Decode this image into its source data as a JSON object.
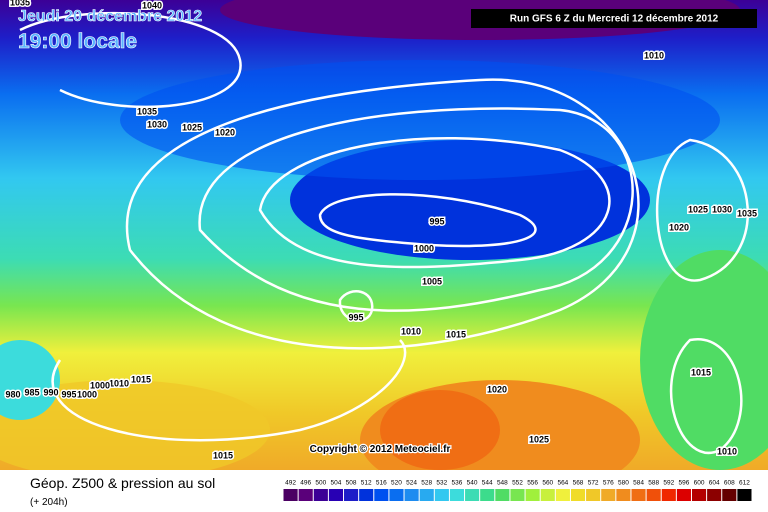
{
  "header": {
    "date": "Jeudi 20 décembre 2012",
    "time": "19:00 locale",
    "run": "Run GFS 6 Z du Mercredi 12 décembre 2012"
  },
  "isobar_labels": [
    1040,
    1035,
    1035,
    1030,
    1025,
    1020,
    1010,
    995,
    1000,
    1005,
    995,
    1010,
    1015,
    1020,
    1025,
    1015,
    1015,
    1010,
    1000,
    980,
    985,
    990,
    995,
    1000,
    1025,
    1030,
    1035,
    1020,
    1015,
    1010
  ],
  "copyright": "Copyright © 2012 Meteociel.fr",
  "legend": {
    "title": "Géop. Z500 & pression au sol",
    "subtitle": "(+ 204h)",
    "labels": [
      492,
      496,
      500,
      504,
      508,
      512,
      516,
      520,
      524,
      528,
      532,
      536,
      540,
      544,
      548,
      552,
      556,
      560,
      564,
      568,
      572,
      576,
      580,
      584,
      588,
      592,
      596,
      600,
      604,
      608,
      612
    ],
    "colors": [
      "#4b0063",
      "#5a007a",
      "#3c0096",
      "#2800b4",
      "#1e1ec8",
      "#0032dc",
      "#0050f0",
      "#0a6ef0",
      "#1e8cf0",
      "#28aaf0",
      "#32c8f0",
      "#3cdcdc",
      "#3cdcb4",
      "#3cdc8c",
      "#50dc64",
      "#78e650",
      "#a0f03c",
      "#c8f03c",
      "#f0f03c",
      "#f0dc28",
      "#f0c828",
      "#f0aa28",
      "#f08c1e",
      "#f06e14",
      "#f0500a",
      "#f02800",
      "#dc0000",
      "#b40000",
      "#8c0000",
      "#640000",
      "#000000"
    ]
  }
}
